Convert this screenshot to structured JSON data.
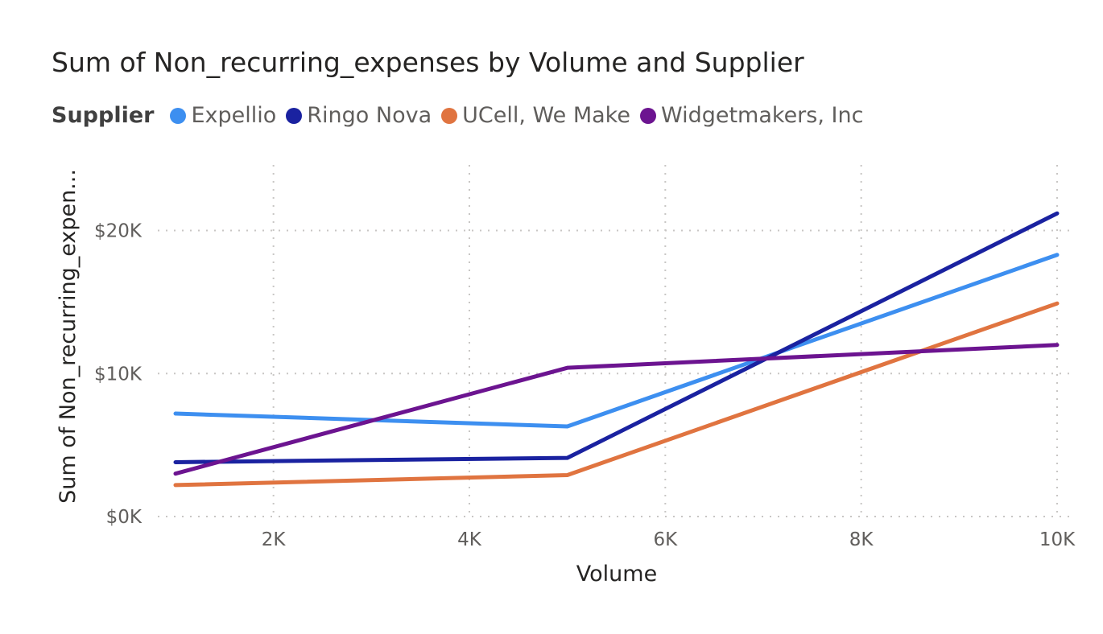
{
  "chart_data": {
    "type": "line",
    "title": "Sum of Non_recurring_expenses by Volume and Supplier",
    "legend_title": "Supplier",
    "legend_position": "top-left",
    "xlabel": "Volume",
    "ylabel": "Sum of Non_recurring_expen...",
    "xlim": [
      1000,
      10000
    ],
    "ylim": [
      0,
      22000
    ],
    "x_ticks": [
      2000,
      4000,
      6000,
      8000,
      10000
    ],
    "x_tick_labels": [
      "2K",
      "4K",
      "6K",
      "8K",
      "10K"
    ],
    "y_ticks": [
      0,
      10000,
      20000
    ],
    "y_tick_labels": [
      "$0K",
      "$10K",
      "$20K"
    ],
    "grid": true,
    "x": [
      1000,
      5000,
      10000
    ],
    "series": [
      {
        "name": "Expellio",
        "color": "#3d8ff0",
        "values": [
          7200,
          6300,
          18300
        ]
      },
      {
        "name": "Ringo Nova",
        "color": "#1a22a0",
        "values": [
          3800,
          4100,
          21200
        ]
      },
      {
        "name": "UCell, We Make",
        "color": "#e07440",
        "values": [
          2200,
          2900,
          14900
        ]
      },
      {
        "name": "Widgetmakers, Inc",
        "color": "#6c1490",
        "values": [
          3000,
          10400,
          12000
        ]
      }
    ]
  }
}
